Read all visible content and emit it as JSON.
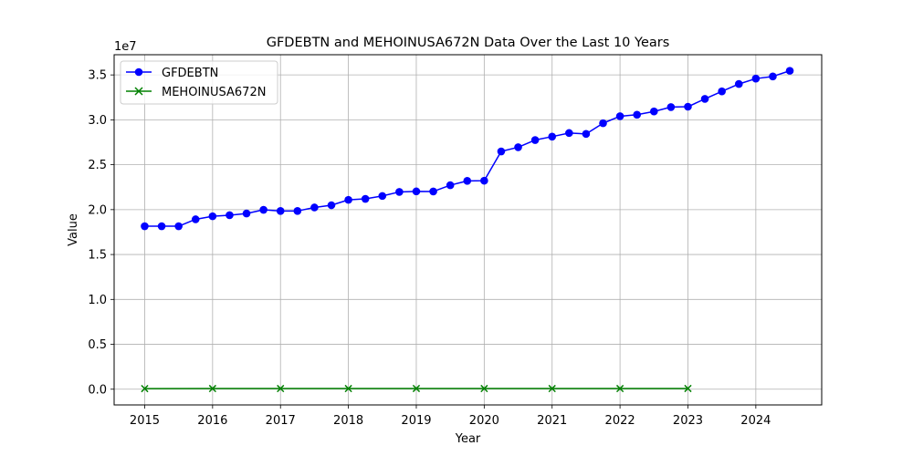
{
  "chart_data": {
    "type": "line",
    "title": "GFDEBTN and MEHOINUSA672N Data Over the Last 10 Years",
    "xlabel": "Year",
    "ylabel": "Value",
    "y_offset_label": "1e7",
    "xlim": [
      2014.55,
      2024.97
    ],
    "ylim": [
      -1750000,
      37250000
    ],
    "x_ticks": [
      2015,
      2016,
      2017,
      2018,
      2019,
      2020,
      2021,
      2022,
      2023,
      2024
    ],
    "x_tick_labels": [
      "2015",
      "2016",
      "2017",
      "2018",
      "2019",
      "2020",
      "2021",
      "2022",
      "2023",
      "2024"
    ],
    "y_ticks": [
      0,
      5000000,
      10000000,
      15000000,
      20000000,
      25000000,
      30000000,
      35000000
    ],
    "y_tick_labels": [
      "0.0",
      "0.5",
      "1.0",
      "1.5",
      "2.0",
      "2.5",
      "3.0",
      "3.5"
    ],
    "grid": true,
    "legend_position": "top-left",
    "series": [
      {
        "name": "GFDEBTN",
        "color": "#0000ff",
        "marker": "circle",
        "x": [
          2015.0,
          2015.25,
          2015.5,
          2015.75,
          2016.0,
          2016.25,
          2016.5,
          2016.75,
          2017.0,
          2017.25,
          2017.5,
          2017.75,
          2018.0,
          2018.25,
          2018.5,
          2018.75,
          2019.0,
          2019.25,
          2019.5,
          2019.75,
          2020.0,
          2020.25,
          2020.5,
          2020.75,
          2021.0,
          2021.25,
          2021.5,
          2021.75,
          2022.0,
          2022.25,
          2022.5,
          2022.75,
          2023.0,
          2023.25,
          2023.5,
          2023.75,
          2024.0,
          2024.25,
          2024.5
        ],
        "y": [
          18150000,
          18150000,
          18150000,
          18920000,
          19260000,
          19380000,
          19570000,
          19980000,
          19850000,
          19850000,
          20240000,
          20490000,
          21090000,
          21200000,
          21520000,
          21970000,
          22030000,
          22020000,
          22720000,
          23200000,
          23220000,
          26480000,
          26950000,
          27750000,
          28130000,
          28530000,
          28430000,
          29620000,
          30400000,
          30570000,
          30930000,
          31420000,
          31460000,
          32330000,
          33170000,
          33990000,
          34590000,
          34830000,
          35460000
        ]
      },
      {
        "name": "MEHOINUSA672N",
        "color": "#008000",
        "marker": "x",
        "x": [
          2015,
          2016,
          2017,
          2018,
          2019,
          2020,
          2021,
          2022,
          2023
        ],
        "y": [
          70700,
          72800,
          73600,
          74000,
          79300,
          76700,
          76300,
          74600,
          80600
        ]
      }
    ]
  }
}
